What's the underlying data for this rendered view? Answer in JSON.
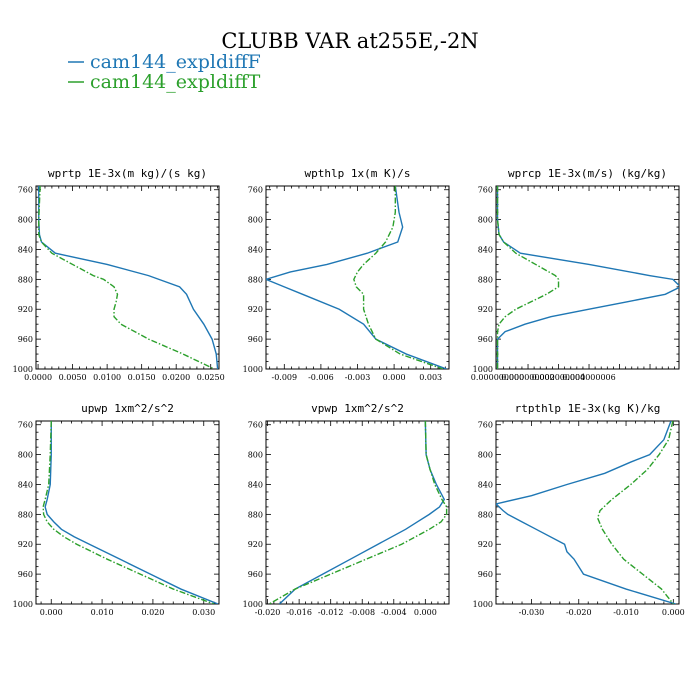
{
  "figure": {
    "title": "CLUBB VAR at255E,-2N",
    "legend": [
      {
        "label": "cam144_expldiffF",
        "color": "#1f77b4",
        "dash": "solid"
      },
      {
        "label": "cam144_expldiffT",
        "color": "#2ca02c",
        "dash": "dashdot"
      }
    ]
  },
  "chart_data": [
    {
      "type": "line",
      "title": "wprtp  1E-3x(m kg)/(s kg)",
      "xlim": [
        -0.0003,
        0.0262
      ],
      "ylim": [
        1000,
        755
      ],
      "xticks": [
        0.0,
        0.005,
        0.01,
        0.015,
        0.02,
        0.025
      ],
      "xtick_labels": [
        "0.0000",
        "0.0050",
        "0.0100",
        "0.0150",
        "0.0200",
        "0.0250"
      ],
      "yticks": [
        760,
        800,
        840,
        880,
        920,
        960,
        1000
      ],
      "series": [
        {
          "name": "cam144_expldiffF",
          "y": [
            755,
            800,
            820,
            830,
            845,
            860,
            875,
            880,
            890,
            900,
            920,
            940,
            960,
            980,
            1000
          ],
          "x": [
            0.0001,
            0.0001,
            0.0002,
            0.0005,
            0.0025,
            0.01,
            0.016,
            0.0175,
            0.0205,
            0.0215,
            0.0225,
            0.024,
            0.0252,
            0.0258,
            0.026
          ]
        },
        {
          "name": "cam144_expldiffT",
          "y": [
            755,
            800,
            820,
            830,
            845,
            860,
            875,
            880,
            890,
            900,
            910,
            920,
            930,
            940,
            960,
            980,
            1000
          ],
          "x": [
            0.0003,
            0.0001,
            0.0001,
            0.0005,
            0.002,
            0.005,
            0.008,
            0.0095,
            0.011,
            0.0115,
            0.0113,
            0.011,
            0.011,
            0.012,
            0.016,
            0.021,
            0.0255
          ]
        }
      ]
    },
    {
      "type": "line",
      "title": "wpthlp  1x(m K)/s",
      "xlim": [
        -0.0105,
        0.0045
      ],
      "ylim": [
        1000,
        755
      ],
      "xticks": [
        -0.009,
        -0.006,
        -0.003,
        0.0,
        0.003
      ],
      "xtick_labels": [
        "-0.009",
        "-0.006",
        "-0.003",
        "0.000",
        "0.003"
      ],
      "yticks": [
        760,
        800,
        840,
        880,
        920,
        960,
        1000
      ],
      "series": [
        {
          "name": "cam144_expldiffF",
          "y": [
            755,
            790,
            810,
            830,
            845,
            860,
            870,
            880,
            890,
            900,
            920,
            940,
            960,
            980,
            1000
          ],
          "x": [
            0.0001,
            0.0004,
            0.0007,
            0.0003,
            -0.0022,
            -0.0055,
            -0.0085,
            -0.0105,
            -0.009,
            -0.0075,
            -0.0045,
            -0.0025,
            -0.0015,
            0.001,
            0.0043
          ]
        },
        {
          "name": "cam144_expldiffT",
          "y": [
            755,
            790,
            810,
            830,
            845,
            860,
            870,
            880,
            890,
            900,
            920,
            940,
            960,
            980,
            1000
          ],
          "x": [
            0.0001,
            0.0001,
            -0.0001,
            -0.0007,
            -0.0015,
            -0.0025,
            -0.003,
            -0.0033,
            -0.0031,
            -0.0025,
            -0.0025,
            -0.0021,
            -0.0015,
            0.0005,
            0.004
          ]
        }
      ]
    },
    {
      "type": "line",
      "title": "wprcp  1E-3x(m/s) (kg/kg)",
      "xlim": [
        -1e-10,
        1.19e-08
      ],
      "ylim": [
        1000,
        755
      ],
      "xticks": [
        0.0,
        2e-09,
        4e-09,
        6e-09
      ],
      "xtick_labels": [
        "0.000000000",
        "0.000000002",
        "0.000000004",
        "0.000000006"
      ],
      "xtick_note": "tick labels overlap in the original: 0.0000000000.00200000000.00399999990.0060000010",
      "yticks": [
        760,
        800,
        840,
        880,
        920,
        960,
        1000
      ],
      "series": [
        {
          "name": "cam144_expldiffF",
          "y": [
            755,
            800,
            820,
            830,
            845,
            860,
            875,
            880,
            890,
            900,
            910,
            920,
            930,
            940,
            950,
            960,
            980,
            1000
          ],
          "x": [
            0.0,
            0.0,
            1e-10,
            4e-10,
            1.5e-09,
            6e-09,
            1e-08,
            1.15e-08,
            1.2e-08,
            1.1e-08,
            8.5e-09,
            6e-09,
            3.5e-09,
            1.8e-09,
            5e-10,
            0.0,
            0.0,
            0.0
          ]
        },
        {
          "name": "cam144_expldiffT",
          "y": [
            755,
            800,
            820,
            830,
            845,
            860,
            875,
            880,
            890,
            900,
            910,
            920,
            930,
            940,
            950,
            960,
            980,
            1000
          ],
          "x": [
            0.0,
            0.0,
            1e-10,
            4e-10,
            1.2e-09,
            2.5e-09,
            3.8e-09,
            4e-09,
            4e-09,
            3.2e-09,
            2.2e-09,
            1.2e-09,
            5e-10,
            1e-10,
            0.0,
            0.0,
            0.0,
            0.0
          ]
        }
      ]
    },
    {
      "type": "line",
      "title": "upwp  1xm^2/s^2",
      "xlim": [
        -0.003,
        0.033
      ],
      "ylim": [
        1000,
        755
      ],
      "xticks": [
        0.0,
        0.01,
        0.02,
        0.03
      ],
      "xtick_labels": [
        "0.000",
        "0.010",
        "0.020",
        "0.030"
      ],
      "yticks": [
        760,
        800,
        840,
        880,
        920,
        960,
        1000
      ],
      "series": [
        {
          "name": "cam144_expldiffF",
          "y": [
            755,
            800,
            840,
            860,
            870,
            880,
            890,
            900,
            910,
            920,
            940,
            960,
            980,
            1000
          ],
          "x": [
            0.0,
            0.0,
            -0.0002,
            -0.0008,
            -0.0012,
            -0.0008,
            0.0005,
            0.002,
            0.0045,
            0.0075,
            0.0135,
            0.0195,
            0.0255,
            0.0328
          ]
        },
        {
          "name": "cam144_expldiffT",
          "y": [
            755,
            800,
            840,
            860,
            870,
            880,
            890,
            900,
            910,
            920,
            940,
            960,
            980,
            1000
          ],
          "x": [
            0.0,
            -0.0002,
            -0.0005,
            -0.0012,
            -0.0016,
            -0.0015,
            -0.0008,
            0.0005,
            0.0025,
            0.005,
            0.011,
            0.0175,
            0.024,
            0.032
          ]
        }
      ]
    },
    {
      "type": "line",
      "title": "vpwp  1xm^2/s^2",
      "xlim": [
        -0.0202,
        0.003
      ],
      "ylim": [
        1000,
        755
      ],
      "xticks": [
        -0.02,
        -0.016,
        -0.012,
        -0.008,
        -0.004,
        0.0
      ],
      "xtick_labels": [
        "-0.020",
        "-0.016",
        "-0.012",
        "-0.008",
        "-0.004",
        "0.000"
      ],
      "yticks": [
        760,
        800,
        840,
        880,
        920,
        960,
        1000
      ],
      "series": [
        {
          "name": "cam144_expldiffF",
          "y": [
            755,
            800,
            820,
            840,
            860,
            870,
            880,
            890,
            900,
            920,
            940,
            960,
            980,
            1000
          ],
          "x": [
            0.0,
            0.0001,
            0.0006,
            0.0014,
            0.0024,
            0.0018,
            0.0005,
            -0.001,
            -0.0025,
            -0.006,
            -0.0095,
            -0.013,
            -0.0165,
            -0.0185
          ]
        },
        {
          "name": "cam144_expldiffT",
          "y": [
            755,
            800,
            820,
            840,
            860,
            870,
            880,
            890,
            900,
            920,
            940,
            960,
            980,
            1000
          ],
          "x": [
            0.0,
            0.0001,
            0.0006,
            0.0012,
            0.0021,
            0.0027,
            0.0027,
            0.002,
            0.0005,
            -0.003,
            -0.0075,
            -0.012,
            -0.0165,
            -0.0198
          ]
        }
      ]
    },
    {
      "type": "line",
      "title": "rtpthlp  1E-3x(kg K)/kg",
      "xlim": [
        -0.0375,
        0.0012
      ],
      "ylim": [
        1000,
        755
      ],
      "xticks": [
        -0.03,
        -0.02,
        -0.01,
        0.0
      ],
      "xtick_labels": [
        "-0.030",
        "-0.020",
        "-0.010",
        "0.000"
      ],
      "yticks": [
        760,
        800,
        840,
        880,
        920,
        960,
        1000
      ],
      "series": [
        {
          "name": "cam144_expldiffF",
          "y": [
            755,
            780,
            800,
            810,
            825,
            840,
            855,
            866,
            875,
            880,
            890,
            900,
            920,
            930,
            940,
            960,
            980,
            1000
          ],
          "x": [
            -0.0005,
            -0.002,
            -0.005,
            -0.009,
            -0.0145,
            -0.0225,
            -0.03,
            -0.0375,
            -0.036,
            -0.035,
            -0.032,
            -0.029,
            -0.023,
            -0.0225,
            -0.021,
            -0.019,
            -0.01,
            0.0005
          ]
        },
        {
          "name": "cam144_expldiffT",
          "y": [
            755,
            780,
            800,
            820,
            840,
            860,
            875,
            885,
            900,
            920,
            940,
            960,
            980,
            1000
          ],
          "x": [
            -0.0001,
            -0.001,
            -0.003,
            -0.0055,
            -0.009,
            -0.013,
            -0.0155,
            -0.016,
            -0.015,
            -0.013,
            -0.0105,
            -0.0065,
            -0.0025,
            0.0
          ]
        }
      ]
    }
  ]
}
